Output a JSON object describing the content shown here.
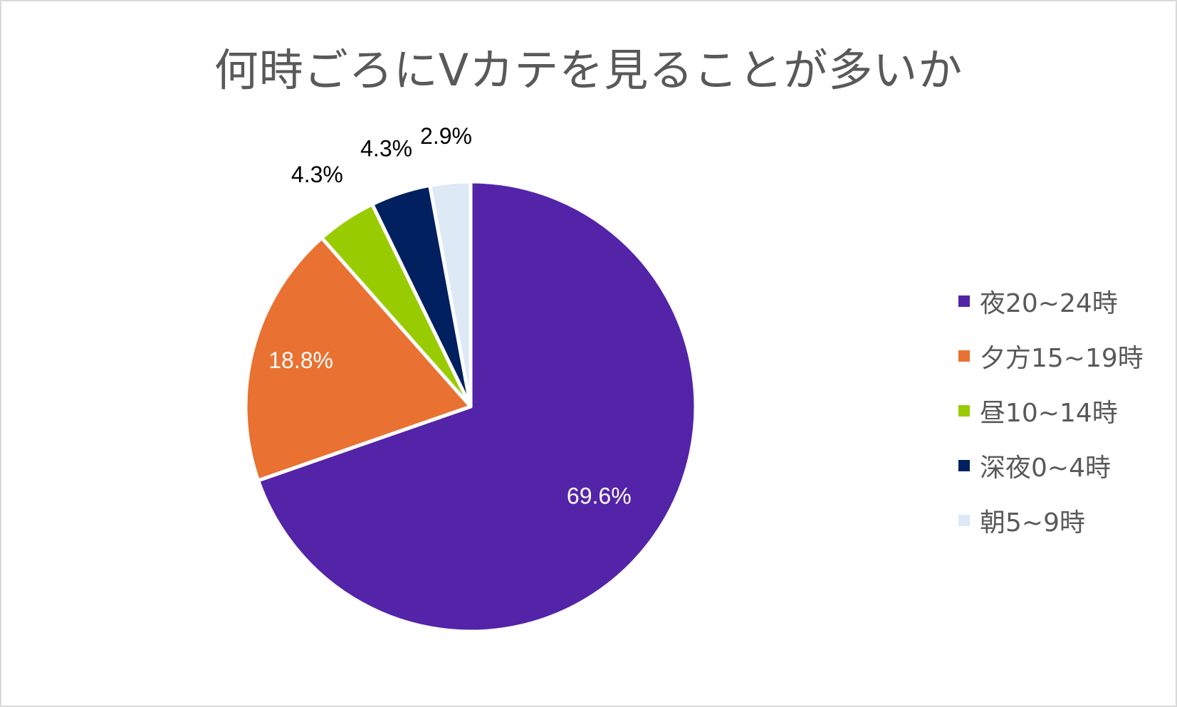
{
  "chart_data": {
    "type": "pie",
    "title": "何時ごろにVカテを見ることが多いか",
    "legend_position": "right",
    "slices": [
      {
        "label": "夜20~24時",
        "value": 69.6,
        "value_label": "69.6%",
        "color": "#5424a8",
        "label_color": "#ffffff"
      },
      {
        "label": "夕方15~19時",
        "value": 18.8,
        "value_label": "18.8%",
        "color": "#e97132",
        "label_color": "#ffffff"
      },
      {
        "label": "昼10~14時",
        "value": 4.3,
        "value_label": "4.3%",
        "color": "#99cc00",
        "label_color": "#000000"
      },
      {
        "label": "深夜0~4時",
        "value": 4.3,
        "value_label": "4.3%",
        "color": "#002060",
        "label_color": "#000000"
      },
      {
        "label": "朝5~9時",
        "value": 2.9,
        "value_label": "2.9%",
        "color": "#dde9f5",
        "label_color": "#000000"
      }
    ]
  }
}
